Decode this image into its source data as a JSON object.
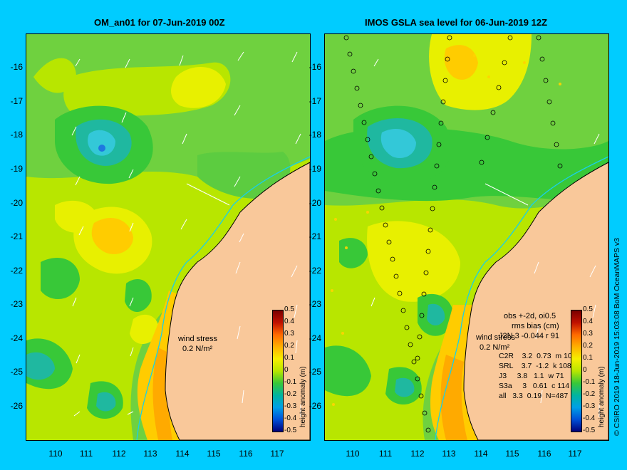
{
  "left_panel": {
    "title": "OM_an01 for 07-Jun-2019 00Z",
    "wind_label_1": "wind stress",
    "wind_label_2": "0.2 N/m²"
  },
  "right_panel": {
    "title": "IMOS GSLA sea level  for 06-Jun-2019 12Z",
    "wind_label_1": "wind stress",
    "wind_label_2": "0.2 N/m²",
    "stats_header_1": "obs +-2d, oi0.5",
    "stats_header_2": "rms  bias (cm)",
    "stats_rows": [
      "C2R    3.2  0.73  m 103",
      "SRL    3.7  -1.2  k 108",
      "J3     3.8   1.1  w 71",
      "S3a     3   0.61  c 114",
      "all   3.3  0.19  N=487"
    ],
    "stats_row0": "J2N   3   -0.044  r 91"
  },
  "y_ticks": [
    "-16",
    "-17",
    "-18",
    "-19",
    "-20",
    "-21",
    "-22",
    "-23",
    "-24",
    "-25",
    "-26"
  ],
  "x_ticks": [
    "110",
    "111",
    "112",
    "113",
    "114",
    "115",
    "116",
    "117"
  ],
  "colorbar": {
    "title": "height anomaly (m)",
    "ticks": [
      "0.5",
      "0.4",
      "0.3",
      "0.2",
      "0.1",
      "0",
      "-0.1",
      "-0.2",
      "-0.3",
      "-0.4",
      "-0.5"
    ]
  },
  "credit": "© CSIRO 2019  18-Jun-2019 15:03:08 BoM OceanMAPS v3",
  "colors": {
    "background": "#00ccff",
    "land": "#f9c89a",
    "green": "#6fd13f",
    "yellow": "#e8f000",
    "orange": "#ffaa00",
    "teal": "#1fb8a0",
    "coastline_current": "#19d0e8"
  }
}
